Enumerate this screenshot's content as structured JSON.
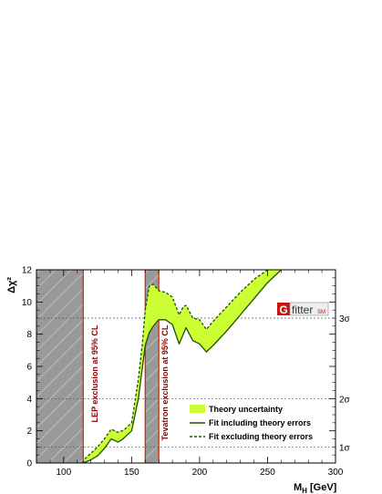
{
  "chart_data": {
    "type": "line",
    "xlabel": "M",
    "xlabel_sub": "H",
    "xlabel_unit": " [GeV]",
    "ylabel": "Δχ²",
    "xlim": [
      80,
      300
    ],
    "ylim": [
      0,
      12
    ],
    "xticks": [
      100,
      150,
      200,
      250,
      300
    ],
    "yticks": [
      0,
      2,
      4,
      6,
      8,
      10,
      12
    ],
    "sigma_lines": [
      {
        "label": "1σ",
        "y": 1
      },
      {
        "label": "2σ",
        "y": 4
      },
      {
        "label": "3σ",
        "y": 9
      }
    ],
    "exclusion_regions": [
      {
        "label": "LEP exclusion at 95% CL",
        "x": [
          80,
          114.4
        ]
      },
      {
        "label": "Tevatron exclusion at 95% CL",
        "x": [
          160,
          170
        ]
      }
    ],
    "band": {
      "name": "Theory uncertainty",
      "color": "#ccff33",
      "x": [
        114,
        116,
        120,
        125,
        130,
        135,
        140,
        143,
        145,
        150,
        155,
        158,
        160,
        163,
        166,
        170,
        175,
        180,
        185,
        188,
        190,
        195,
        200,
        205,
        210,
        220,
        230,
        240,
        250,
        260,
        270
      ],
      "lower": [
        0,
        0.05,
        0.2,
        0.45,
        0.9,
        1.5,
        1.3,
        1.45,
        1.6,
        2.0,
        4.0,
        6.0,
        7.3,
        8.1,
        8.5,
        8.9,
        8.9,
        8.6,
        7.4,
        8.0,
        8.4,
        7.6,
        7.4,
        6.9,
        7.3,
        8.2,
        9.2,
        10.2,
        11.2,
        12.0,
        12.0
      ],
      "upper": [
        0,
        0.3,
        0.6,
        1.0,
        1.5,
        2.1,
        1.9,
        2.0,
        2.1,
        2.5,
        5.2,
        7.5,
        9.5,
        11.0,
        11.1,
        10.7,
        10.6,
        10.3,
        9.2,
        9.7,
        9.8,
        9.0,
        8.9,
        8.3,
        8.8,
        9.7,
        10.6,
        11.4,
        12.0,
        12.0,
        12.0
      ]
    },
    "series": [
      {
        "name": "Fit including theory errors",
        "style": "solid",
        "x": [
          114,
          116,
          120,
          125,
          130,
          135,
          140,
          143,
          145,
          150,
          155,
          158,
          160,
          163,
          166,
          170,
          175,
          180,
          185,
          188,
          190,
          195,
          200,
          205,
          210,
          220,
          230,
          240,
          250,
          260
        ],
        "y": [
          0,
          0.05,
          0.2,
          0.45,
          0.9,
          1.5,
          1.3,
          1.45,
          1.6,
          2.0,
          4.0,
          6.0,
          7.3,
          8.1,
          8.5,
          8.9,
          8.9,
          8.6,
          7.4,
          8.0,
          8.4,
          7.6,
          7.4,
          6.9,
          7.3,
          8.2,
          9.2,
          10.2,
          11.2,
          12.0
        ]
      },
      {
        "name": "Fit excluding theory errors",
        "style": "dashed",
        "x": [
          114,
          116,
          120,
          125,
          130,
          135,
          140,
          143,
          145,
          150,
          155,
          158,
          160,
          163,
          166,
          170,
          175,
          180,
          185,
          188,
          190,
          195,
          200,
          205,
          210,
          220,
          230,
          240,
          250
        ],
        "y": [
          0,
          0.3,
          0.6,
          1.0,
          1.5,
          2.1,
          1.9,
          2.0,
          2.1,
          2.5,
          5.2,
          7.5,
          9.5,
          11.0,
          11.1,
          10.7,
          10.6,
          10.3,
          9.2,
          9.7,
          9.8,
          9.0,
          8.9,
          8.3,
          8.8,
          9.7,
          10.6,
          11.4,
          12.0
        ]
      }
    ],
    "legend": {
      "placement": "bottom-right",
      "entries": [
        "Theory uncertainty",
        "Fit including theory errors",
        "Fit excluding theory errors"
      ]
    },
    "logo": {
      "letter": "G",
      "word": "fitter",
      "tag": "SM"
    }
  }
}
